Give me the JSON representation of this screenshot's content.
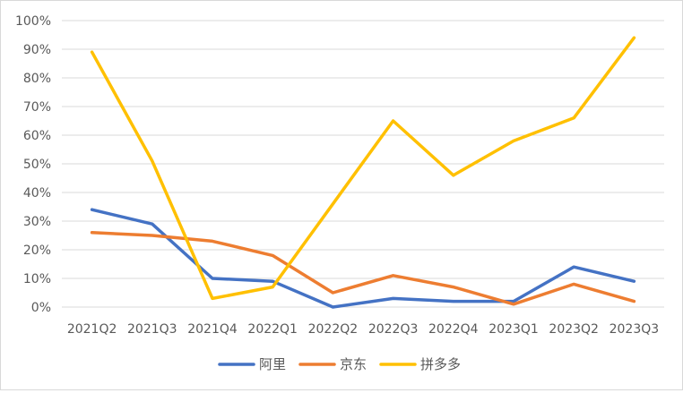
{
  "chart_data": {
    "type": "line",
    "categories": [
      "2021Q2",
      "2021Q3",
      "2021Q4",
      "2022Q1",
      "2022Q2",
      "2022Q3",
      "2022Q4",
      "2023Q1",
      "2023Q2",
      "2023Q3"
    ],
    "ylim": [
      0,
      100
    ],
    "y_ticks": [
      "0%",
      "10%",
      "20%",
      "30%",
      "40%",
      "50%",
      "60%",
      "70%",
      "80%",
      "90%",
      "100%"
    ],
    "grid": true,
    "legend_position": "bottom",
    "series": [
      {
        "name": "阿里",
        "color": "#4472C4",
        "values": [
          34,
          29,
          10,
          9,
          0,
          3,
          2,
          2,
          14,
          9
        ]
      },
      {
        "name": "京东",
        "color": "#ED7D31",
        "values": [
          26,
          25,
          23,
          18,
          5,
          11,
          7,
          1,
          8,
          2
        ]
      },
      {
        "name": "拼多多",
        "color": "#FFC000",
        "values": [
          89,
          51,
          3,
          7,
          36,
          65,
          46,
          58,
          66,
          94
        ]
      }
    ]
  }
}
